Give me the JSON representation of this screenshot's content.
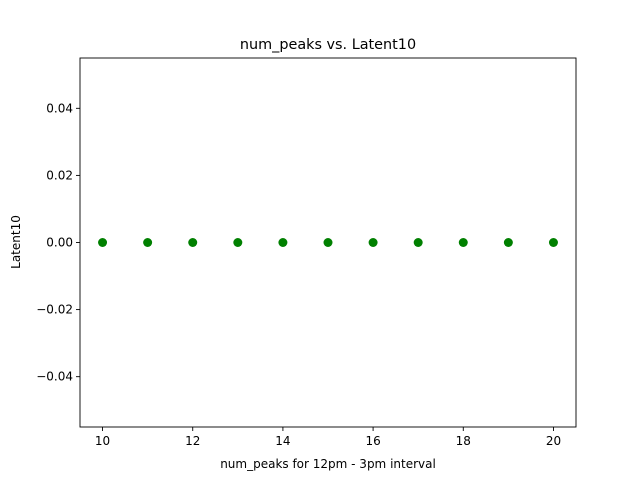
{
  "chart_data": {
    "type": "scatter",
    "title": "num_peaks vs. Latent10",
    "xlabel": "num_peaks for 12pm - 3pm interval",
    "ylabel": "Latent10",
    "xlim": [
      9.5,
      20.5
    ],
    "ylim": [
      -0.055,
      0.055
    ],
    "xticks": [
      10,
      12,
      14,
      16,
      18,
      20
    ],
    "xtick_labels": [
      "10",
      "12",
      "14",
      "16",
      "18",
      "20"
    ],
    "yticks": [
      -0.04,
      -0.02,
      0.0,
      0.02,
      0.04
    ],
    "ytick_labels": [
      "−0.04",
      "−0.02",
      "0.00",
      "0.02",
      "0.04"
    ],
    "grid": false,
    "marker_color": "#008000",
    "series": [
      {
        "x": [
          10,
          11,
          12,
          13,
          14,
          15,
          16,
          17,
          18,
          19,
          20
        ],
        "y": [
          0,
          0,
          0,
          0,
          0,
          0,
          0,
          0,
          0,
          0,
          0
        ]
      }
    ]
  }
}
